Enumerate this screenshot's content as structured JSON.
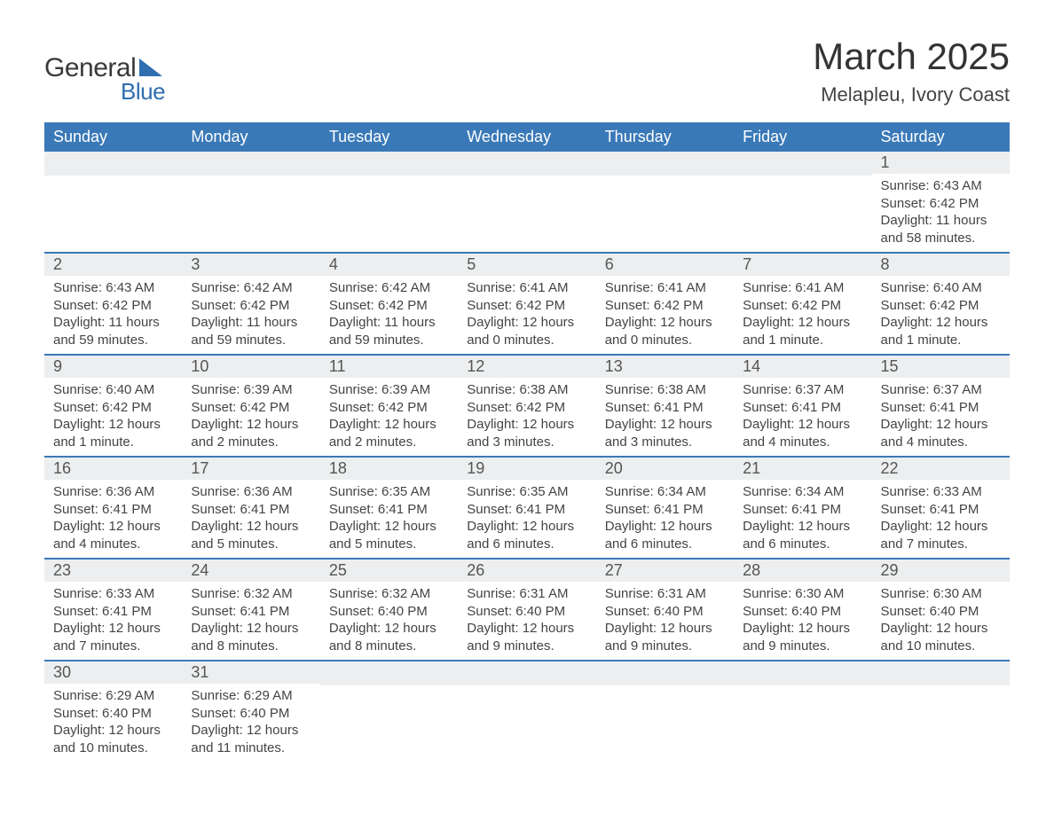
{
  "logo": {
    "text1": "General",
    "text2": "Blue"
  },
  "title": "March 2025",
  "location": "Melapleu, Ivory Coast",
  "calendar": {
    "type": "table",
    "header_bg": "#3a79b7",
    "header_fg": "#ffffff",
    "daynum_bg": "#eceeef",
    "border_color": "#3a79b7",
    "logo_accent": "#2f6eb0",
    "text_color": "#444444",
    "columns": [
      "Sunday",
      "Monday",
      "Tuesday",
      "Wednesday",
      "Thursday",
      "Friday",
      "Saturday"
    ],
    "weeks": [
      [
        null,
        null,
        null,
        null,
        null,
        null,
        {
          "n": "1",
          "sr": "Sunrise: 6:43 AM",
          "ss": "Sunset: 6:42 PM",
          "dl": "Daylight: 11 hours and 58 minutes."
        }
      ],
      [
        {
          "n": "2",
          "sr": "Sunrise: 6:43 AM",
          "ss": "Sunset: 6:42 PM",
          "dl": "Daylight: 11 hours and 59 minutes."
        },
        {
          "n": "3",
          "sr": "Sunrise: 6:42 AM",
          "ss": "Sunset: 6:42 PM",
          "dl": "Daylight: 11 hours and 59 minutes."
        },
        {
          "n": "4",
          "sr": "Sunrise: 6:42 AM",
          "ss": "Sunset: 6:42 PM",
          "dl": "Daylight: 11 hours and 59 minutes."
        },
        {
          "n": "5",
          "sr": "Sunrise: 6:41 AM",
          "ss": "Sunset: 6:42 PM",
          "dl": "Daylight: 12 hours and 0 minutes."
        },
        {
          "n": "6",
          "sr": "Sunrise: 6:41 AM",
          "ss": "Sunset: 6:42 PM",
          "dl": "Daylight: 12 hours and 0 minutes."
        },
        {
          "n": "7",
          "sr": "Sunrise: 6:41 AM",
          "ss": "Sunset: 6:42 PM",
          "dl": "Daylight: 12 hours and 1 minute."
        },
        {
          "n": "8",
          "sr": "Sunrise: 6:40 AM",
          "ss": "Sunset: 6:42 PM",
          "dl": "Daylight: 12 hours and 1 minute."
        }
      ],
      [
        {
          "n": "9",
          "sr": "Sunrise: 6:40 AM",
          "ss": "Sunset: 6:42 PM",
          "dl": "Daylight: 12 hours and 1 minute."
        },
        {
          "n": "10",
          "sr": "Sunrise: 6:39 AM",
          "ss": "Sunset: 6:42 PM",
          "dl": "Daylight: 12 hours and 2 minutes."
        },
        {
          "n": "11",
          "sr": "Sunrise: 6:39 AM",
          "ss": "Sunset: 6:42 PM",
          "dl": "Daylight: 12 hours and 2 minutes."
        },
        {
          "n": "12",
          "sr": "Sunrise: 6:38 AM",
          "ss": "Sunset: 6:42 PM",
          "dl": "Daylight: 12 hours and 3 minutes."
        },
        {
          "n": "13",
          "sr": "Sunrise: 6:38 AM",
          "ss": "Sunset: 6:41 PM",
          "dl": "Daylight: 12 hours and 3 minutes."
        },
        {
          "n": "14",
          "sr": "Sunrise: 6:37 AM",
          "ss": "Sunset: 6:41 PM",
          "dl": "Daylight: 12 hours and 4 minutes."
        },
        {
          "n": "15",
          "sr": "Sunrise: 6:37 AM",
          "ss": "Sunset: 6:41 PM",
          "dl": "Daylight: 12 hours and 4 minutes."
        }
      ],
      [
        {
          "n": "16",
          "sr": "Sunrise: 6:36 AM",
          "ss": "Sunset: 6:41 PM",
          "dl": "Daylight: 12 hours and 4 minutes."
        },
        {
          "n": "17",
          "sr": "Sunrise: 6:36 AM",
          "ss": "Sunset: 6:41 PM",
          "dl": "Daylight: 12 hours and 5 minutes."
        },
        {
          "n": "18",
          "sr": "Sunrise: 6:35 AM",
          "ss": "Sunset: 6:41 PM",
          "dl": "Daylight: 12 hours and 5 minutes."
        },
        {
          "n": "19",
          "sr": "Sunrise: 6:35 AM",
          "ss": "Sunset: 6:41 PM",
          "dl": "Daylight: 12 hours and 6 minutes."
        },
        {
          "n": "20",
          "sr": "Sunrise: 6:34 AM",
          "ss": "Sunset: 6:41 PM",
          "dl": "Daylight: 12 hours and 6 minutes."
        },
        {
          "n": "21",
          "sr": "Sunrise: 6:34 AM",
          "ss": "Sunset: 6:41 PM",
          "dl": "Daylight: 12 hours and 6 minutes."
        },
        {
          "n": "22",
          "sr": "Sunrise: 6:33 AM",
          "ss": "Sunset: 6:41 PM",
          "dl": "Daylight: 12 hours and 7 minutes."
        }
      ],
      [
        {
          "n": "23",
          "sr": "Sunrise: 6:33 AM",
          "ss": "Sunset: 6:41 PM",
          "dl": "Daylight: 12 hours and 7 minutes."
        },
        {
          "n": "24",
          "sr": "Sunrise: 6:32 AM",
          "ss": "Sunset: 6:41 PM",
          "dl": "Daylight: 12 hours and 8 minutes."
        },
        {
          "n": "25",
          "sr": "Sunrise: 6:32 AM",
          "ss": "Sunset: 6:40 PM",
          "dl": "Daylight: 12 hours and 8 minutes."
        },
        {
          "n": "26",
          "sr": "Sunrise: 6:31 AM",
          "ss": "Sunset: 6:40 PM",
          "dl": "Daylight: 12 hours and 9 minutes."
        },
        {
          "n": "27",
          "sr": "Sunrise: 6:31 AM",
          "ss": "Sunset: 6:40 PM",
          "dl": "Daylight: 12 hours and 9 minutes."
        },
        {
          "n": "28",
          "sr": "Sunrise: 6:30 AM",
          "ss": "Sunset: 6:40 PM",
          "dl": "Daylight: 12 hours and 9 minutes."
        },
        {
          "n": "29",
          "sr": "Sunrise: 6:30 AM",
          "ss": "Sunset: 6:40 PM",
          "dl": "Daylight: 12 hours and 10 minutes."
        }
      ],
      [
        {
          "n": "30",
          "sr": "Sunrise: 6:29 AM",
          "ss": "Sunset: 6:40 PM",
          "dl": "Daylight: 12 hours and 10 minutes."
        },
        {
          "n": "31",
          "sr": "Sunrise: 6:29 AM",
          "ss": "Sunset: 6:40 PM",
          "dl": "Daylight: 12 hours and 11 minutes."
        },
        null,
        null,
        null,
        null,
        null
      ]
    ]
  }
}
